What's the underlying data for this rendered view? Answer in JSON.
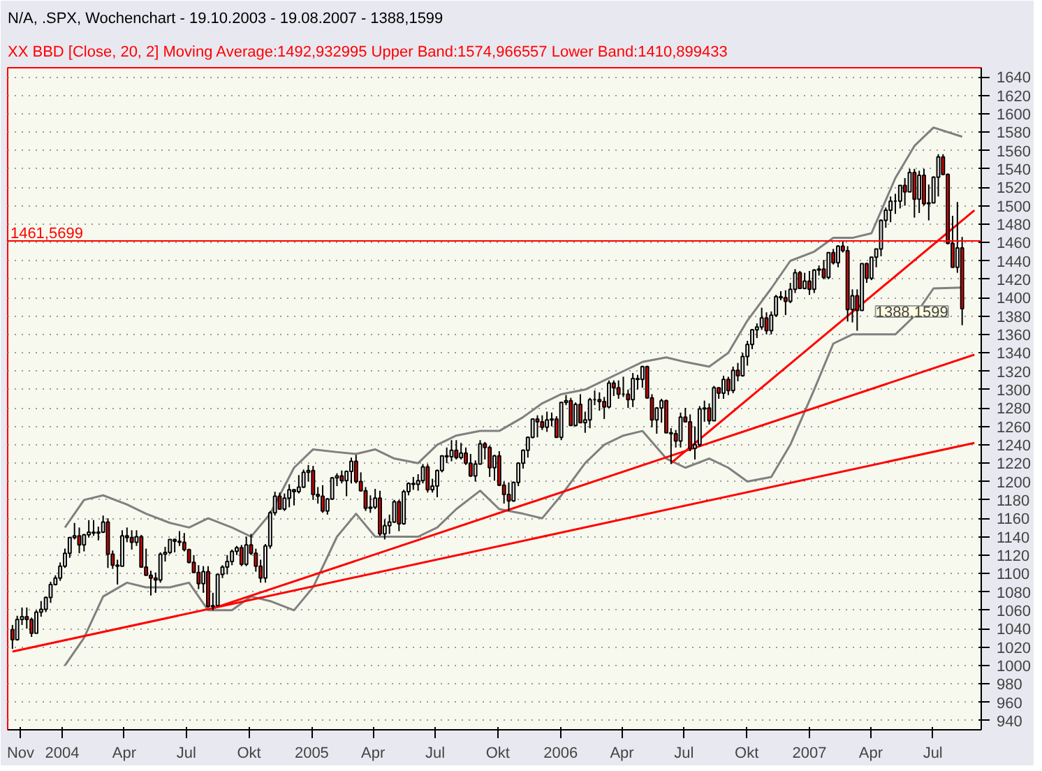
{
  "chart_data": {
    "type": "candlestick",
    "title": "N/A, .SPX, Wochenchart - 19.10.2003 - 19.08.2007 - 1388,1599",
    "subtitle": "XX BBD [Close, 20, 2] Moving Average:1492,932995 Upper Band:1574,966557 Lower Band:1410,899433",
    "x": [
      "2003-10-20",
      "2003-10-27",
      "2003-11-03",
      "2003-11-10",
      "2003-11-17",
      "2003-11-24",
      "2003-12-01",
      "2003-12-08",
      "2003-12-15",
      "2003-12-22",
      "2003-12-29",
      "2004-01-05",
      "2004-01-12",
      "2004-01-19",
      "2004-01-26",
      "2004-02-02",
      "2004-02-09",
      "2004-02-16",
      "2004-02-23",
      "2004-03-01",
      "2004-03-08",
      "2004-03-15",
      "2004-03-22",
      "2004-03-29",
      "2004-04-05",
      "2004-04-12",
      "2004-04-19",
      "2004-04-26",
      "2004-05-03",
      "2004-05-10",
      "2004-05-17",
      "2004-05-24",
      "2004-05-31",
      "2004-06-07",
      "2004-06-14",
      "2004-06-21",
      "2004-06-28",
      "2004-07-05",
      "2004-07-12",
      "2004-07-19",
      "2004-07-26",
      "2004-08-02",
      "2004-08-09",
      "2004-08-16",
      "2004-08-23",
      "2004-08-30",
      "2004-09-06",
      "2004-09-13",
      "2004-09-20",
      "2004-09-27",
      "2004-10-04",
      "2004-10-11",
      "2004-10-18",
      "2004-10-25",
      "2004-11-01",
      "2004-11-08",
      "2004-11-15",
      "2004-11-22",
      "2004-11-29",
      "2004-12-06",
      "2004-12-13",
      "2004-12-20",
      "2004-12-27",
      "2005-01-03",
      "2005-01-10",
      "2005-01-17",
      "2005-01-24",
      "2005-01-31",
      "2005-02-07",
      "2005-02-14",
      "2005-02-21",
      "2005-02-28",
      "2005-03-07",
      "2005-03-14",
      "2005-03-21",
      "2005-03-28",
      "2005-04-04",
      "2005-04-11",
      "2005-04-18",
      "2005-04-25",
      "2005-05-02",
      "2005-05-09",
      "2005-05-16",
      "2005-05-23",
      "2005-05-30",
      "2005-06-06",
      "2005-06-13",
      "2005-06-20",
      "2005-06-27",
      "2005-07-04",
      "2005-07-11",
      "2005-07-18",
      "2005-07-25",
      "2005-08-01",
      "2005-08-08",
      "2005-08-15",
      "2005-08-22",
      "2005-08-29",
      "2005-09-05",
      "2005-09-12",
      "2005-09-19",
      "2005-09-26",
      "2005-10-03",
      "2005-10-10",
      "2005-10-17",
      "2005-10-24",
      "2005-10-31",
      "2005-11-07",
      "2005-11-14",
      "2005-11-21",
      "2005-11-28",
      "2005-12-05",
      "2005-12-12",
      "2005-12-19",
      "2005-12-26",
      "2006-01-02",
      "2006-01-09",
      "2006-01-16",
      "2006-01-23",
      "2006-01-30",
      "2006-02-06",
      "2006-02-13",
      "2006-02-20",
      "2006-02-27",
      "2006-03-06",
      "2006-03-13",
      "2006-03-20",
      "2006-03-27",
      "2006-04-03",
      "2006-04-10",
      "2006-04-17",
      "2006-04-24",
      "2006-05-01",
      "2006-05-08",
      "2006-05-15",
      "2006-05-22",
      "2006-05-29",
      "2006-06-05",
      "2006-06-12",
      "2006-06-19",
      "2006-06-26",
      "2006-07-03",
      "2006-07-10",
      "2006-07-17",
      "2006-07-24",
      "2006-07-31",
      "2006-08-07",
      "2006-08-14",
      "2006-08-21",
      "2006-08-28",
      "2006-09-04",
      "2006-09-11",
      "2006-09-18",
      "2006-09-25",
      "2006-10-02",
      "2006-10-09",
      "2006-10-16",
      "2006-10-23",
      "2006-10-30",
      "2006-11-06",
      "2006-11-13",
      "2006-11-20",
      "2006-11-27",
      "2006-12-04",
      "2006-12-11",
      "2006-12-18",
      "2006-12-25",
      "2007-01-01",
      "2007-01-08",
      "2007-01-15",
      "2007-01-22",
      "2007-01-29",
      "2007-02-05",
      "2007-02-12",
      "2007-02-19",
      "2007-02-26",
      "2007-03-05",
      "2007-03-12",
      "2007-03-19",
      "2007-03-26",
      "2007-04-02",
      "2007-04-09",
      "2007-04-16",
      "2007-04-23",
      "2007-04-30",
      "2007-05-07",
      "2007-05-14",
      "2007-05-21",
      "2007-05-28",
      "2007-06-04",
      "2007-06-11",
      "2007-06-18",
      "2007-06-25",
      "2007-07-02",
      "2007-07-09",
      "2007-07-16",
      "2007-07-23",
      "2007-07-30",
      "2007-08-06",
      "2007-08-13"
    ],
    "ohlc": [
      [
        1039,
        1044,
        1018,
        1028
      ],
      [
        1028,
        1054,
        1027,
        1050
      ],
      [
        1050,
        1063,
        1044,
        1053
      ],
      [
        1053,
        1063,
        1040,
        1050
      ],
      [
        1050,
        1052,
        1031,
        1035
      ],
      [
        1035,
        1060,
        1035,
        1058
      ],
      [
        1058,
        1070,
        1053,
        1061
      ],
      [
        1061,
        1075,
        1058,
        1074
      ],
      [
        1074,
        1091,
        1068,
        1088
      ],
      [
        1088,
        1098,
        1087,
        1095
      ],
      [
        1095,
        1112,
        1092,
        1108
      ],
      [
        1108,
        1127,
        1106,
        1122
      ],
      [
        1122,
        1139,
        1117,
        1139
      ],
      [
        1139,
        1155,
        1137,
        1141
      ],
      [
        1141,
        1150,
        1122,
        1131
      ],
      [
        1131,
        1143,
        1124,
        1142
      ],
      [
        1142,
        1158,
        1139,
        1145
      ],
      [
        1145,
        1158,
        1141,
        1144
      ],
      [
        1144,
        1151,
        1136,
        1145
      ],
      [
        1145,
        1163,
        1144,
        1156
      ],
      [
        1156,
        1160,
        1106,
        1121
      ],
      [
        1121,
        1125,
        1105,
        1109
      ],
      [
        1109,
        1115,
        1088,
        1108
      ],
      [
        1108,
        1147,
        1108,
        1141
      ],
      [
        1141,
        1150,
        1134,
        1139
      ],
      [
        1139,
        1147,
        1126,
        1134
      ],
      [
        1134,
        1147,
        1130,
        1140
      ],
      [
        1140,
        1142,
        1107,
        1107
      ],
      [
        1107,
        1127,
        1098,
        1098
      ],
      [
        1098,
        1103,
        1076,
        1095
      ],
      [
        1095,
        1101,
        1079,
        1093
      ],
      [
        1093,
        1123,
        1090,
        1121
      ],
      [
        1121,
        1129,
        1113,
        1123
      ],
      [
        1123,
        1137,
        1121,
        1137
      ],
      [
        1137,
        1138,
        1123,
        1135
      ],
      [
        1135,
        1146,
        1130,
        1134
      ],
      [
        1134,
        1144,
        1124,
        1126
      ],
      [
        1126,
        1127,
        1111,
        1112
      ],
      [
        1112,
        1120,
        1101,
        1101
      ],
      [
        1101,
        1109,
        1083,
        1089
      ],
      [
        1089,
        1108,
        1079,
        1102
      ],
      [
        1102,
        1108,
        1063,
        1064
      ],
      [
        1064,
        1079,
        1060,
        1065
      ],
      [
        1065,
        1099,
        1065,
        1099
      ],
      [
        1099,
        1109,
        1095,
        1107
      ],
      [
        1107,
        1120,
        1099,
        1113
      ],
      [
        1113,
        1126,
        1109,
        1124
      ],
      [
        1124,
        1130,
        1120,
        1128
      ],
      [
        1128,
        1131,
        1108,
        1110
      ],
      [
        1110,
        1140,
        1108,
        1131
      ],
      [
        1131,
        1143,
        1120,
        1122
      ],
      [
        1122,
        1127,
        1102,
        1108
      ],
      [
        1108,
        1115,
        1090,
        1095
      ],
      [
        1095,
        1132,
        1090,
        1130
      ],
      [
        1130,
        1168,
        1127,
        1166
      ],
      [
        1166,
        1189,
        1163,
        1184
      ],
      [
        1184,
        1188,
        1170,
        1170
      ],
      [
        1170,
        1187,
        1168,
        1182
      ],
      [
        1182,
        1197,
        1172,
        1191
      ],
      [
        1191,
        1192,
        1174,
        1189
      ],
      [
        1189,
        1207,
        1187,
        1194
      ],
      [
        1194,
        1213,
        1193,
        1210
      ],
      [
        1210,
        1218,
        1200,
        1212
      ],
      [
        1212,
        1217,
        1180,
        1186
      ],
      [
        1186,
        1194,
        1176,
        1184
      ],
      [
        1184,
        1196,
        1166,
        1168
      ],
      [
        1168,
        1182,
        1164,
        1181
      ],
      [
        1181,
        1205,
        1180,
        1204
      ],
      [
        1204,
        1209,
        1195,
        1206
      ],
      [
        1206,
        1212,
        1198,
        1201
      ],
      [
        1201,
        1212,
        1184,
        1211
      ],
      [
        1211,
        1226,
        1198,
        1222
      ],
      [
        1222,
        1229,
        1198,
        1200
      ],
      [
        1200,
        1210,
        1189,
        1190
      ],
      [
        1190,
        1194,
        1168,
        1171
      ],
      [
        1171,
        1185,
        1166,
        1172
      ],
      [
        1172,
        1192,
        1170,
        1182
      ],
      [
        1182,
        1190,
        1141,
        1143
      ],
      [
        1143,
        1159,
        1137,
        1152
      ],
      [
        1152,
        1164,
        1143,
        1156
      ],
      [
        1156,
        1180,
        1155,
        1178
      ],
      [
        1178,
        1180,
        1146,
        1154
      ],
      [
        1154,
        1191,
        1153,
        1189
      ],
      [
        1189,
        1199,
        1185,
        1198
      ],
      [
        1198,
        1205,
        1191,
        1197
      ],
      [
        1197,
        1208,
        1190,
        1201
      ],
      [
        1201,
        1219,
        1198,
        1216
      ],
      [
        1216,
        1219,
        1188,
        1191
      ],
      [
        1191,
        1203,
        1188,
        1195
      ],
      [
        1195,
        1213,
        1183,
        1212
      ],
      [
        1212,
        1228,
        1210,
        1228
      ],
      [
        1228,
        1237,
        1220,
        1227
      ],
      [
        1227,
        1245,
        1222,
        1234
      ],
      [
        1234,
        1245,
        1224,
        1226
      ],
      [
        1226,
        1242,
        1224,
        1231
      ],
      [
        1231,
        1237,
        1218,
        1220
      ],
      [
        1220,
        1230,
        1205,
        1206
      ],
      [
        1206,
        1223,
        1200,
        1219
      ],
      [
        1219,
        1245,
        1219,
        1241
      ],
      [
        1241,
        1243,
        1224,
        1237
      ],
      [
        1237,
        1239,
        1205,
        1215
      ],
      [
        1215,
        1229,
        1201,
        1228
      ],
      [
        1228,
        1233,
        1195,
        1196
      ],
      [
        1196,
        1200,
        1176,
        1186
      ],
      [
        1186,
        1199,
        1168,
        1179
      ],
      [
        1179,
        1200,
        1178,
        1199
      ],
      [
        1199,
        1221,
        1195,
        1220
      ],
      [
        1220,
        1235,
        1214,
        1234
      ],
      [
        1234,
        1249,
        1226,
        1248
      ],
      [
        1248,
        1268,
        1247,
        1268
      ],
      [
        1268,
        1272,
        1248,
        1265
      ],
      [
        1265,
        1272,
        1256,
        1259
      ],
      [
        1259,
        1276,
        1254,
        1267
      ],
      [
        1267,
        1275,
        1260,
        1268
      ],
      [
        1268,
        1271,
        1248,
        1248
      ],
      [
        1248,
        1286,
        1245,
        1286
      ],
      [
        1286,
        1294,
        1283,
        1288
      ],
      [
        1288,
        1291,
        1261,
        1261
      ],
      [
        1261,
        1286,
        1260,
        1284
      ],
      [
        1284,
        1295,
        1264,
        1264
      ],
      [
        1264,
        1276,
        1253,
        1267
      ],
      [
        1267,
        1291,
        1258,
        1289
      ],
      [
        1289,
        1299,
        1283,
        1289
      ],
      [
        1289,
        1297,
        1277,
        1287
      ],
      [
        1287,
        1292,
        1268,
        1281
      ],
      [
        1281,
        1310,
        1280,
        1307
      ],
      [
        1307,
        1310,
        1293,
        1302
      ],
      [
        1302,
        1310,
        1290,
        1295
      ],
      [
        1295,
        1314,
        1292,
        1295
      ],
      [
        1295,
        1300,
        1280,
        1289
      ],
      [
        1289,
        1318,
        1281,
        1312
      ],
      [
        1312,
        1316,
        1300,
        1311
      ],
      [
        1311,
        1326,
        1302,
        1325
      ],
      [
        1325,
        1326,
        1290,
        1291
      ],
      [
        1291,
        1295,
        1259,
        1267
      ],
      [
        1267,
        1281,
        1252,
        1280
      ],
      [
        1280,
        1290,
        1264,
        1288
      ],
      [
        1288,
        1289,
        1253,
        1253
      ],
      [
        1253,
        1258,
        1219,
        1252
      ],
      [
        1252,
        1256,
        1237,
        1244
      ],
      [
        1244,
        1275,
        1237,
        1270
      ],
      [
        1270,
        1280,
        1265,
        1265
      ],
      [
        1265,
        1273,
        1233,
        1236
      ],
      [
        1236,
        1260,
        1224,
        1240
      ],
      [
        1240,
        1282,
        1238,
        1279
      ],
      [
        1279,
        1288,
        1265,
        1280
      ],
      [
        1280,
        1285,
        1262,
        1266
      ],
      [
        1266,
        1304,
        1266,
        1302
      ],
      [
        1302,
        1302,
        1290,
        1296
      ],
      [
        1296,
        1315,
        1290,
        1311
      ],
      [
        1311,
        1314,
        1294,
        1299
      ],
      [
        1299,
        1325,
        1296,
        1321
      ],
      [
        1321,
        1329,
        1309,
        1315
      ],
      [
        1315,
        1340,
        1314,
        1336
      ],
      [
        1336,
        1353,
        1326,
        1349
      ],
      [
        1349,
        1366,
        1344,
        1365
      ],
      [
        1365,
        1372,
        1356,
        1368
      ],
      [
        1368,
        1389,
        1365,
        1378
      ],
      [
        1378,
        1384,
        1360,
        1364
      ],
      [
        1364,
        1385,
        1360,
        1381
      ],
      [
        1381,
        1403,
        1379,
        1401
      ],
      [
        1401,
        1407,
        1397,
        1400
      ],
      [
        1400,
        1408,
        1381,
        1396
      ],
      [
        1396,
        1416,
        1394,
        1409
      ],
      [
        1409,
        1431,
        1405,
        1427
      ],
      [
        1427,
        1429,
        1410,
        1410
      ],
      [
        1410,
        1427,
        1409,
        1418
      ],
      [
        1418,
        1429,
        1403,
        1409
      ],
      [
        1409,
        1431,
        1405,
        1430
      ],
      [
        1430,
        1435,
        1424,
        1431
      ],
      [
        1431,
        1441,
        1420,
        1422
      ],
      [
        1422,
        1449,
        1420,
        1449
      ],
      [
        1449,
        1453,
        1436,
        1438
      ],
      [
        1438,
        1457,
        1433,
        1456
      ],
      [
        1456,
        1461,
        1449,
        1451
      ],
      [
        1451,
        1456,
        1374,
        1387
      ],
      [
        1387,
        1409,
        1373,
        1402
      ],
      [
        1402,
        1409,
        1364,
        1386
      ],
      [
        1386,
        1437,
        1386,
        1437
      ],
      [
        1437,
        1438,
        1416,
        1421
      ],
      [
        1421,
        1444,
        1419,
        1444
      ],
      [
        1444,
        1453,
        1433,
        1453
      ],
      [
        1453,
        1485,
        1445,
        1484
      ],
      [
        1484,
        1498,
        1476,
        1495
      ],
      [
        1495,
        1510,
        1482,
        1505
      ],
      [
        1505,
        1513,
        1491,
        1505
      ],
      [
        1505,
        1522,
        1497,
        1522
      ],
      [
        1522,
        1530,
        1500,
        1515
      ],
      [
        1515,
        1540,
        1515,
        1536
      ],
      [
        1536,
        1540,
        1487,
        1507
      ],
      [
        1507,
        1538,
        1492,
        1533
      ],
      [
        1533,
        1540,
        1500,
        1502
      ],
      [
        1502,
        1523,
        1484,
        1503
      ],
      [
        1503,
        1532,
        1503,
        1531
      ],
      [
        1531,
        1556,
        1510,
        1553
      ],
      [
        1553,
        1556,
        1533,
        1534
      ],
      [
        1534,
        1535,
        1458,
        1459
      ],
      [
        1459,
        1489,
        1433,
        1433
      ],
      [
        1433,
        1504,
        1427,
        1454
      ],
      [
        1454,
        1466,
        1370,
        1388
      ]
    ],
    "series": [
      {
        "type": "line",
        "color": "#808080",
        "x": [
          "2004-01-05",
          "2004-02-02",
          "2004-03-01",
          "2004-04-05",
          "2004-05-03",
          "2004-06-07",
          "2004-07-05",
          "2004-08-02",
          "2004-09-06",
          "2004-10-04",
          "2004-11-01",
          "2004-12-06",
          "2005-01-03",
          "2005-02-07",
          "2005-03-07",
          "2005-04-04",
          "2005-05-02",
          "2005-06-06",
          "2005-07-04",
          "2005-08-01",
          "2005-09-05",
          "2005-10-03",
          "2005-11-07",
          "2005-12-05",
          "2006-01-02",
          "2006-02-06",
          "2006-03-06",
          "2006-04-03",
          "2006-05-01",
          "2006-06-05",
          "2006-07-03",
          "2006-08-07",
          "2006-09-04",
          "2006-10-02",
          "2006-11-06",
          "2006-12-04",
          "2007-01-08",
          "2007-02-05",
          "2007-03-05",
          "2007-04-02",
          "2007-05-07",
          "2007-06-04",
          "2007-07-02",
          "2007-08-13"
        ],
        "values": [
          1150,
          1180,
          1185,
          1175,
          1165,
          1155,
          1150,
          1160,
          1150,
          1140,
          1165,
          1215,
          1235,
          1232,
          1230,
          1235,
          1225,
          1220,
          1240,
          1250,
          1255,
          1255,
          1270,
          1285,
          1295,
          1300,
          1310,
          1320,
          1330,
          1335,
          1330,
          1325,
          1340,
          1375,
          1410,
          1440,
          1450,
          1465,
          1465,
          1470,
          1530,
          1565,
          1585,
          1575
        ]
      },
      {
        "type": "line",
        "color": "#808080",
        "x": [
          "2004-01-05",
          "2004-02-02",
          "2004-03-01",
          "2004-04-05",
          "2004-05-03",
          "2004-06-07",
          "2004-07-05",
          "2004-08-02",
          "2004-09-06",
          "2004-10-04",
          "2004-11-01",
          "2004-12-06",
          "2005-01-03",
          "2005-02-07",
          "2005-03-07",
          "2005-04-04",
          "2005-05-02",
          "2005-06-06",
          "2005-07-04",
          "2005-08-01",
          "2005-09-05",
          "2005-10-03",
          "2005-11-07",
          "2005-12-05",
          "2006-01-02",
          "2006-02-06",
          "2006-03-06",
          "2006-04-03",
          "2006-05-01",
          "2006-06-05",
          "2006-07-03",
          "2006-08-07",
          "2006-09-04",
          "2006-10-02",
          "2006-11-06",
          "2006-12-04",
          "2007-01-08",
          "2007-02-05",
          "2007-03-05",
          "2007-04-02",
          "2007-05-07",
          "2007-06-04",
          "2007-07-02",
          "2007-08-13"
        ],
        "values": [
          1000,
          1030,
          1075,
          1090,
          1085,
          1085,
          1090,
          1060,
          1060,
          1075,
          1070,
          1060,
          1085,
          1140,
          1165,
          1140,
          1140,
          1140,
          1150,
          1170,
          1190,
          1170,
          1165,
          1160,
          1185,
          1220,
          1240,
          1250,
          1255,
          1225,
          1215,
          1225,
          1215,
          1200,
          1205,
          1240,
          1300,
          1350,
          1360,
          1360,
          1360,
          1380,
          1410,
          1411
        ]
      },
      {
        "type": "line",
        "color": "#ff0000",
        "x": [
          "2003-10-20",
          "2007-08-31"
        ],
        "values": [
          1015,
          1242
        ]
      },
      {
        "type": "line",
        "color": "#ff0000",
        "x": [
          "2004-08-09",
          "2007-08-31"
        ],
        "values": [
          1062,
          1338
        ]
      },
      {
        "type": "line",
        "color": "#ff0000",
        "x": [
          "2006-06-12",
          "2007-08-31"
        ],
        "values": [
          1220,
          1495
        ]
      }
    ],
    "ref_lines": [
      {
        "axis": "y",
        "value": 1461.5699,
        "label": "1461,5699",
        "color": "#ff0000"
      }
    ],
    "annotations": [
      {
        "text": "1388,1599",
        "x": "2007-08-13",
        "y": 1388
      }
    ],
    "xlim": [
      "2003-10-13",
      "2007-09-10"
    ],
    "xticks": [
      {
        "value": "2003-11-01",
        "label": "Nov"
      },
      {
        "value": "2004-01-01",
        "label": "2004"
      },
      {
        "value": "2004-04-01",
        "label": "Apr"
      },
      {
        "value": "2004-07-01",
        "label": "Jul"
      },
      {
        "value": "2004-10-01",
        "label": "Okt"
      },
      {
        "value": "2005-01-01",
        "label": "2005"
      },
      {
        "value": "2005-04-01",
        "label": "Apr"
      },
      {
        "value": "2005-07-01",
        "label": "Jul"
      },
      {
        "value": "2005-10-01",
        "label": "Okt"
      },
      {
        "value": "2006-01-01",
        "label": "2006"
      },
      {
        "value": "2006-04-01",
        "label": "Apr"
      },
      {
        "value": "2006-07-01",
        "label": "Jul"
      },
      {
        "value": "2006-10-01",
        "label": "Okt"
      },
      {
        "value": "2007-01-01",
        "label": "2007"
      },
      {
        "value": "2007-04-01",
        "label": "Apr"
      },
      {
        "value": "2007-07-01",
        "label": "Jul"
      }
    ],
    "ylim": [
      930,
      1650
    ],
    "yticks": [
      940,
      960,
      980,
      1000,
      1020,
      1040,
      1060,
      1080,
      1100,
      1120,
      1140,
      1160,
      1180,
      1200,
      1220,
      1240,
      1260,
      1280,
      1300,
      1320,
      1340,
      1360,
      1380,
      1400,
      1420,
      1440,
      1460,
      1480,
      1500,
      1520,
      1540,
      1560,
      1580,
      1600,
      1620,
      1640
    ],
    "grid": "y"
  }
}
